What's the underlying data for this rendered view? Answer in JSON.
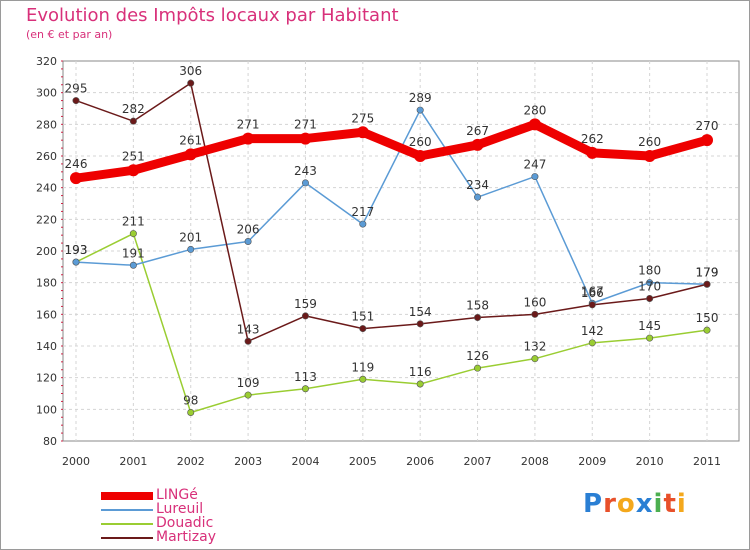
{
  "title": "Evolution des Impôts locaux par Habitant",
  "subtitle": "(en € et par an)",
  "brand": {
    "letters": [
      "P",
      "r",
      "o",
      "x",
      "i",
      "t",
      "i"
    ],
    "colors": [
      "#2a7fd4",
      "#e8502a",
      "#f4a81c",
      "#2a7fd4",
      "#4caf50",
      "#e8502a",
      "#f4a81c"
    ]
  },
  "chart_data": {
    "type": "line",
    "x": [
      "2000",
      "2001",
      "2002",
      "2003",
      "2004",
      "2005",
      "2006",
      "2007",
      "2008",
      "2009",
      "2010",
      "2011"
    ],
    "ylim": [
      80,
      320
    ],
    "yticks": [
      80,
      100,
      120,
      140,
      160,
      180,
      200,
      220,
      240,
      260,
      280,
      300,
      320
    ],
    "grid": true,
    "legend_position": "bottom-left",
    "series": [
      {
        "name": "LINGé",
        "color": "#ee0000",
        "values": [
          246,
          251,
          261,
          271,
          271,
          275,
          260,
          267,
          280,
          262,
          260,
          270
        ],
        "labels": [
          "246",
          "251",
          "261",
          "271",
          "271",
          "275",
          "260",
          "267",
          "280",
          "262",
          "260",
          "270"
        ]
      },
      {
        "name": "Lureuil",
        "color": "#5b9bd5",
        "values": [
          193,
          191,
          201,
          206,
          243,
          217,
          289,
          234,
          247,
          167,
          180,
          179
        ],
        "labels": [
          "193",
          "191",
          "201",
          "206",
          "243",
          "217",
          "289",
          "234",
          "247",
          "167",
          "180",
          "179"
        ]
      },
      {
        "name": "Douadic",
        "color": "#9acd32",
        "values": [
          193,
          211,
          98,
          109,
          113,
          119,
          116,
          126,
          132,
          142,
          145,
          150
        ],
        "labels": [
          "193",
          "211",
          "98",
          "109",
          "113",
          "119",
          "116",
          "126",
          "132",
          "142",
          "145",
          "150"
        ]
      },
      {
        "name": "Martizay",
        "color": "#6b1a1a",
        "values": [
          295,
          282,
          306,
          143,
          159,
          151,
          154,
          158,
          160,
          166,
          170,
          179
        ],
        "labels": [
          "295",
          "282",
          "306",
          "143",
          "159",
          "151",
          "154",
          "158",
          "160",
          "166",
          "170",
          "179"
        ]
      }
    ]
  }
}
